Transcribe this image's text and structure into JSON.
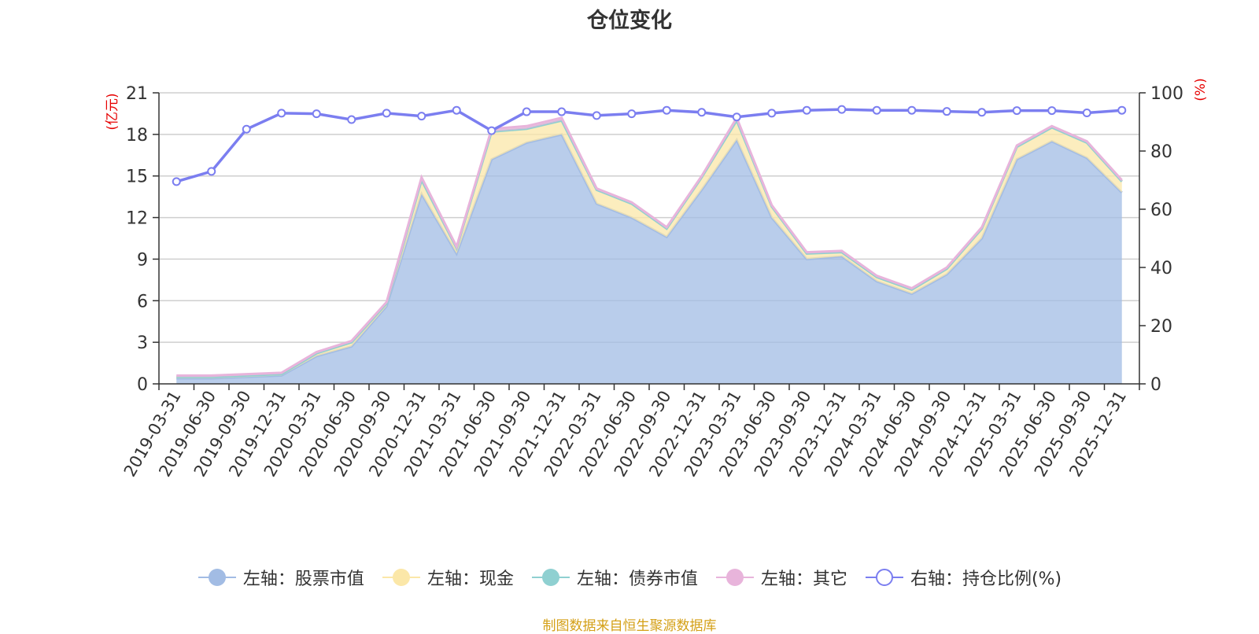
{
  "chart_data": {
    "type": "area",
    "title": "仓位变化",
    "ylabel_left": "(亿元)",
    "ylabel_right": "(%)",
    "ylim_left": [
      0,
      21
    ],
    "yticks_left": [
      0,
      3,
      6,
      9,
      12,
      15,
      18,
      21
    ],
    "ylim_right": [
      0,
      100
    ],
    "yticks_right": [
      0,
      20,
      40,
      60,
      80,
      100
    ],
    "grid": true,
    "legend_position": "bottom",
    "stacked": true,
    "categories": [
      "2019-03-31",
      "2019-06-30",
      "2019-09-30",
      "2019-12-31",
      "2020-03-31",
      "2020-06-30",
      "2020-09-30",
      "2020-12-31",
      "2021-03-31",
      "2021-06-30",
      "2021-09-30",
      "2021-12-31",
      "2022-03-31",
      "2022-06-30",
      "2022-09-30",
      "2022-12-31",
      "2023-03-31",
      "2023-06-30",
      "2023-09-30",
      "2023-12-31",
      "2024-03-31",
      "2024-06-30",
      "2024-09-30",
      "2024-12-31",
      "2025-03-31",
      "2025-06-30",
      "2025-09-30",
      "2025-12-31"
    ],
    "series": [
      {
        "name": "左轴：股票市值",
        "axis": "left",
        "kind": "area",
        "color": "#a2bce4",
        "values": [
          0.4,
          0.4,
          0.5,
          0.6,
          2.0,
          2.7,
          5.6,
          13.7,
          9.4,
          16.2,
          17.4,
          18.0,
          13.0,
          12.0,
          10.6,
          14.0,
          17.6,
          12.0,
          9.0,
          9.2,
          7.4,
          6.5,
          7.9,
          10.5,
          16.2,
          17.5,
          16.3,
          13.8
        ]
      },
      {
        "name": "左轴：现金",
        "axis": "left",
        "kind": "area",
        "color": "#fbe7a8",
        "values": [
          0.1,
          0.1,
          0.1,
          0.1,
          0.2,
          0.3,
          0.2,
          1.0,
          0.4,
          2.0,
          1.0,
          1.0,
          1.0,
          1.0,
          0.6,
          0.9,
          1.4,
          0.8,
          0.4,
          0.3,
          0.3,
          0.3,
          0.4,
          0.7,
          0.9,
          1.0,
          1.1,
          0.8
        ]
      },
      {
        "name": "左轴：债券市值",
        "axis": "left",
        "kind": "area",
        "color": "#8fd0d1",
        "values": [
          0,
          0,
          0,
          0,
          0,
          0,
          0,
          0,
          0,
          0,
          0,
          0,
          0,
          0,
          0,
          0,
          0,
          0,
          0,
          0,
          0,
          0,
          0,
          0,
          0,
          0,
          0,
          0
        ]
      },
      {
        "name": "左轴：其它",
        "axis": "left",
        "kind": "area",
        "color": "#e8b4db",
        "values": [
          0.1,
          0.1,
          0.1,
          0.1,
          0.1,
          0.1,
          0.1,
          0.2,
          0.1,
          0.2,
          0.2,
          0.2,
          0.1,
          0.1,
          0.1,
          0.1,
          0.2,
          0.1,
          0.1,
          0.1,
          0.1,
          0.1,
          0.1,
          0.1,
          0.1,
          0.1,
          0.1,
          0.1
        ]
      },
      {
        "name": "右轴：持仓比例(%)",
        "axis": "right",
        "kind": "line",
        "color": "#7b7ef0",
        "values": [
          69.5,
          73,
          87.5,
          93,
          92.8,
          90.8,
          93,
          92,
          94,
          87,
          93.5,
          93.5,
          92.2,
          92.8,
          94,
          93.3,
          91.7,
          93,
          94,
          94.3,
          94,
          94,
          93.6,
          93.3,
          93.9,
          93.9,
          93.1,
          94
        ]
      }
    ]
  },
  "source_note": "制图数据来自恒生聚源数据库"
}
